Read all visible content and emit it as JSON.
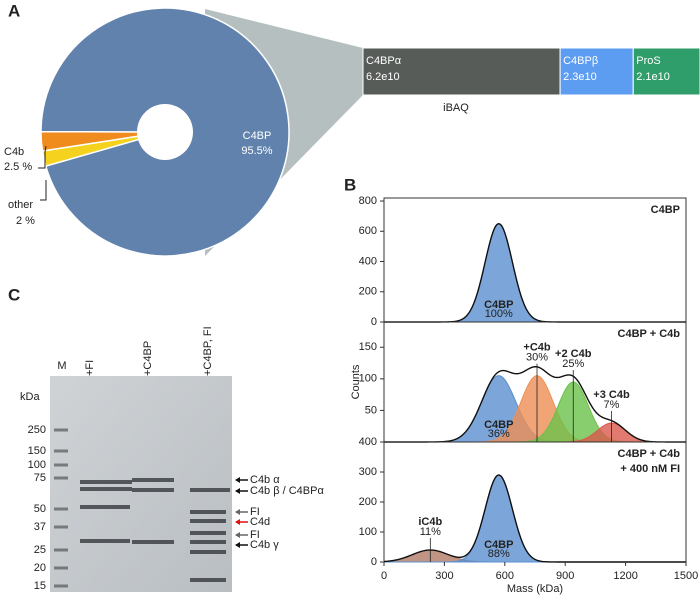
{
  "panel_labels": [
    "A",
    "B",
    "C"
  ],
  "chart_data": [
    {
      "type": "pie",
      "labels": [
        "C4BP",
        "C4b",
        "other"
      ],
      "values": [
        95.5,
        2.5,
        2
      ],
      "value_labels": [
        "95.5%",
        "2.5 %",
        "2 %"
      ],
      "colors": [
        "#6182ad",
        "#f08c1e",
        "#f5d21e"
      ]
    },
    {
      "type": "stacked-bar",
      "xlabel": "iBAQ",
      "categories": [
        "C4BPα",
        "C4BPβ",
        "ProS"
      ],
      "values": [
        62000000000,
        23000000000,
        21000000000
      ],
      "value_labels": [
        "6.2e10",
        "2.3e10",
        "2.1e10"
      ],
      "colors": [
        "#575c59",
        "#5c9df2",
        "#2f9e6b"
      ]
    },
    {
      "type": "gaussian-fit",
      "title": [
        "C4BP"
      ],
      "xlim": [
        0,
        1500
      ],
      "ylim": [
        0,
        820
      ],
      "yticks": [
        0,
        200,
        400,
        600,
        800
      ],
      "peaks": [
        {
          "name": "C4BP",
          "label": "100%",
          "color": "#5b8fd0",
          "center": 570,
          "height": 650,
          "sigma": 68
        }
      ]
    },
    {
      "type": "gaussian-fit",
      "title": [
        "C4BP + C4b"
      ],
      "ylabel": "Counts",
      "xlim": [
        0,
        1500
      ],
      "ylim": [
        0,
        190
      ],
      "yticks": [
        50,
        100,
        150
      ],
      "peaks": [
        {
          "name": "C4BP",
          "label": "36%",
          "color": "#5b8fd0",
          "center": 570,
          "height": 105,
          "sigma": 85
        },
        {
          "name": "+C4b",
          "label": "30%",
          "color": "#ee8f55",
          "center": 760,
          "height": 105,
          "sigma": 80
        },
        {
          "name": "+2 C4b",
          "label": "25%",
          "color": "#6cc24a",
          "center": 940,
          "height": 95,
          "sigma": 75
        },
        {
          "name": "+3 C4b",
          "label": "7%",
          "color": "#d9594c",
          "center": 1130,
          "height": 30,
          "sigma": 70
        }
      ]
    },
    {
      "type": "gaussian-fit",
      "title": [
        "C4BP + C4b",
        "+ 400 nM FI"
      ],
      "xlabel": "Mass (kDa)",
      "xlim": [
        0,
        1500
      ],
      "xticks": [
        0,
        300,
        600,
        900,
        1200,
        1500
      ],
      "ylim": [
        0,
        400
      ],
      "yticks": [
        0,
        100,
        200,
        300,
        400
      ],
      "peaks": [
        {
          "name": "iC4b",
          "label": "11%",
          "color": "#b07a68",
          "center": 230,
          "height": 40,
          "sigma": 90
        },
        {
          "name": "C4BP",
          "label": "88%",
          "color": "#5b8fd0",
          "center": 570,
          "height": 290,
          "sigma": 68
        }
      ]
    }
  ],
  "gel": {
    "lanes": [
      "M",
      "+FI",
      "+C4BP",
      "+C4BP, FI"
    ],
    "unit": "kDa",
    "ladder": [
      "250",
      "150",
      "100",
      "75",
      "50",
      "37",
      "25",
      "20",
      "15"
    ],
    "annotations": [
      "C4b α",
      "C4b β / C4BPα",
      "FI",
      "C4d",
      "FI",
      "C4b γ"
    ]
  }
}
